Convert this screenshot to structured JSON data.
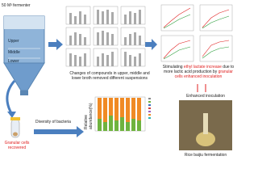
{
  "fermenter": {
    "title": "50 M³ fermenter",
    "layers": [
      "Upper",
      "Middle",
      "Lower"
    ]
  },
  "compounds_caption": "Changes of compounds in upper, middle and lower broth removed different suspensions",
  "diversity_label": "Diversity of bacteria",
  "granular_label": "Granular cells recovered",
  "abundance_axis": "Relative abundance(%)",
  "stimulating_caption": [
    "Stimulating",
    "ethyl lactate increase",
    "due to more lactic acid production by",
    "granular cells enhanced inoculation"
  ],
  "enhanced_label": "Enhanced inoculation",
  "rice_label": "Rice baijiu fermentation"
}
